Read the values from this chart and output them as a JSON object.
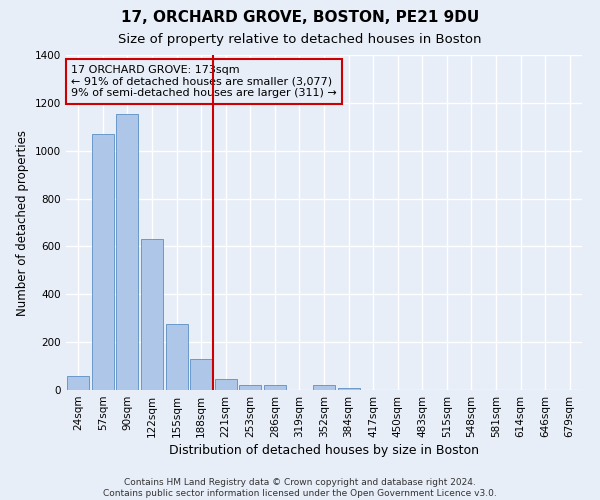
{
  "title1": "17, ORCHARD GROVE, BOSTON, PE21 9DU",
  "title2": "Size of property relative to detached houses in Boston",
  "xlabel": "Distribution of detached houses by size in Boston",
  "ylabel": "Number of detached properties",
  "bar_labels": [
    "24sqm",
    "57sqm",
    "90sqm",
    "122sqm",
    "155sqm",
    "188sqm",
    "221sqm",
    "253sqm",
    "286sqm",
    "319sqm",
    "352sqm",
    "384sqm",
    "417sqm",
    "450sqm",
    "483sqm",
    "515sqm",
    "548sqm",
    "581sqm",
    "614sqm",
    "646sqm",
    "679sqm"
  ],
  "bar_values": [
    60,
    1070,
    1155,
    630,
    275,
    130,
    45,
    20,
    20,
    0,
    20,
    10,
    0,
    0,
    0,
    0,
    0,
    0,
    0,
    0,
    0
  ],
  "bar_color": "#aec6e8",
  "bar_edge_color": "#5a8fc5",
  "vline_x": 5.5,
  "vline_color": "#cc0000",
  "annotation_line1": "17 ORCHARD GROVE: 173sqm",
  "annotation_line2": "← 91% of detached houses are smaller (3,077)",
  "annotation_line3": "9% of semi-detached houses are larger (311) →",
  "annotation_box_color": "#cc0000",
  "ylim": [
    0,
    1400
  ],
  "yticks": [
    0,
    200,
    400,
    600,
    800,
    1000,
    1200,
    1400
  ],
  "footer": "Contains HM Land Registry data © Crown copyright and database right 2024.\nContains public sector information licensed under the Open Government Licence v3.0.",
  "bg_color": "#e8eef8",
  "grid_color": "#ffffff",
  "title1_fontsize": 11,
  "title2_fontsize": 9.5,
  "xlabel_fontsize": 9,
  "ylabel_fontsize": 8.5,
  "tick_fontsize": 7.5,
  "annotation_fontsize": 8,
  "footer_fontsize": 6.5
}
